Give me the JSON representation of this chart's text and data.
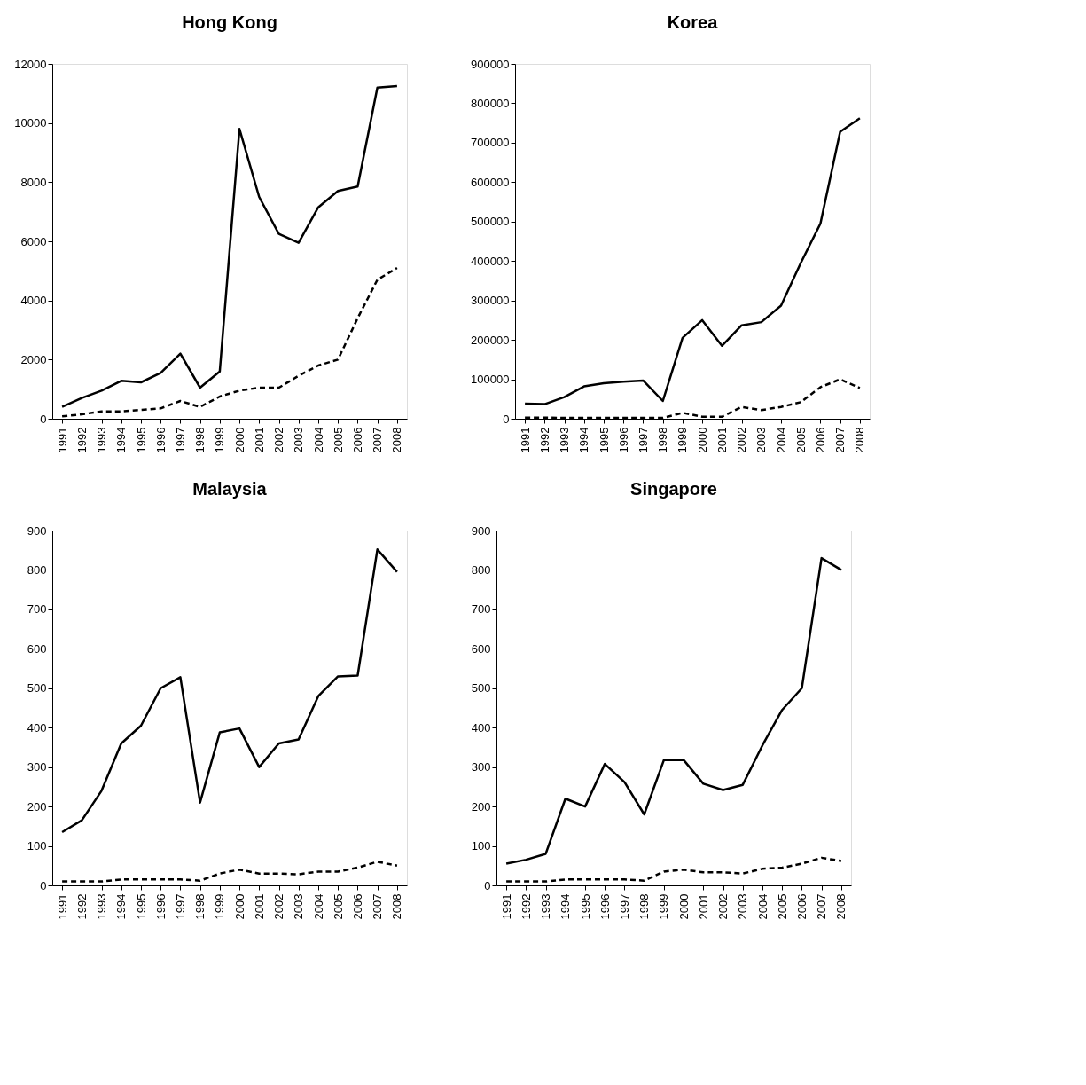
{
  "chart_data": [
    {
      "type": "line",
      "title": "Hong Kong",
      "categories": [
        "1991",
        "1992",
        "1993",
        "1994",
        "1995",
        "1996",
        "1997",
        "1998",
        "1999",
        "2000",
        "2001",
        "2002",
        "2003",
        "2004",
        "2005",
        "2006",
        "2007",
        "2008"
      ],
      "ylim": [
        0,
        12000
      ],
      "yticks": [
        0,
        2000,
        4000,
        6000,
        8000,
        10000,
        12000
      ],
      "grid": false,
      "marker": "none",
      "series": [
        {
          "color": "#000000",
          "line_style": "solid",
          "values": [
            400,
            700,
            950,
            1280,
            1230,
            1550,
            2200,
            1050,
            1600,
            9800,
            7500,
            6250,
            5950,
            7150,
            7700,
            7850,
            11200,
            11250
          ]
        },
        {
          "color": "#000000",
          "line_style": "dashed",
          "values": [
            80,
            150,
            250,
            250,
            300,
            350,
            600,
            400,
            750,
            950,
            1050,
            1050,
            1450,
            1800,
            2000,
            3400,
            4700,
            5100
          ]
        }
      ]
    },
    {
      "type": "line",
      "title": "Korea",
      "categories": [
        "1991",
        "1992",
        "1993",
        "1994",
        "1995",
        "1996",
        "1997",
        "1998",
        "1999",
        "2000",
        "2001",
        "2002",
        "2003",
        "2004",
        "2005",
        "2006",
        "2007",
        "2008"
      ],
      "ylim": [
        0,
        900000
      ],
      "yticks": [
        0,
        100000,
        200000,
        300000,
        400000,
        500000,
        600000,
        700000,
        800000,
        900000
      ],
      "grid": false,
      "marker": "none",
      "series": [
        {
          "color": "#000000",
          "line_style": "solid",
          "values": [
            38000,
            37000,
            55000,
            82000,
            90000,
            94000,
            97000,
            45000,
            205000,
            250000,
            185000,
            237000,
            245000,
            287000,
            395000,
            495000,
            728000,
            762000
          ]
        },
        {
          "color": "#000000",
          "line_style": "dashed",
          "values": [
            3000,
            3000,
            2000,
            2000,
            2000,
            2000,
            2000,
            2000,
            15000,
            5000,
            5000,
            30000,
            22000,
            30000,
            42000,
            80000,
            100000,
            78000
          ]
        }
      ]
    },
    {
      "type": "line",
      "title": "Malaysia",
      "categories": [
        "1991",
        "1992",
        "1993",
        "1994",
        "1995",
        "1996",
        "1997",
        "1998",
        "1999",
        "2000",
        "2001",
        "2002",
        "2003",
        "2004",
        "2005",
        "2006",
        "2007",
        "2008"
      ],
      "ylim": [
        0,
        900
      ],
      "yticks": [
        0,
        100,
        200,
        300,
        400,
        500,
        600,
        700,
        800,
        900
      ],
      "grid": false,
      "marker": "none",
      "series": [
        {
          "color": "#000000",
          "line_style": "solid",
          "values": [
            135,
            165,
            240,
            360,
            405,
            500,
            528,
            210,
            388,
            398,
            300,
            360,
            370,
            480,
            530,
            532,
            852,
            795
          ]
        },
        {
          "color": "#000000",
          "line_style": "dashed",
          "values": [
            10,
            10,
            10,
            15,
            15,
            15,
            15,
            12,
            30,
            40,
            30,
            30,
            28,
            35,
            35,
            45,
            60,
            50
          ]
        }
      ]
    },
    {
      "type": "line",
      "title": "Singapore",
      "categories": [
        "1991",
        "1992",
        "1993",
        "1994",
        "1995",
        "1996",
        "1997",
        "1998",
        "1999",
        "2000",
        "2001",
        "2002",
        "2003",
        "2004",
        "2005",
        "2006",
        "2007",
        "2008"
      ],
      "ylim": [
        0,
        900
      ],
      "yticks": [
        0,
        100,
        200,
        300,
        400,
        500,
        600,
        700,
        800,
        900
      ],
      "grid": false,
      "marker": "none",
      "series": [
        {
          "color": "#000000",
          "line_style": "solid",
          "values": [
            55,
            65,
            80,
            220,
            200,
            308,
            262,
            180,
            318,
            318,
            258,
            242,
            255,
            355,
            445,
            500,
            830,
            800
          ]
        },
        {
          "color": "#000000",
          "line_style": "dashed",
          "values": [
            10,
            10,
            10,
            15,
            15,
            15,
            15,
            12,
            35,
            40,
            33,
            33,
            30,
            42,
            45,
            55,
            70,
            62
          ]
        }
      ]
    }
  ]
}
